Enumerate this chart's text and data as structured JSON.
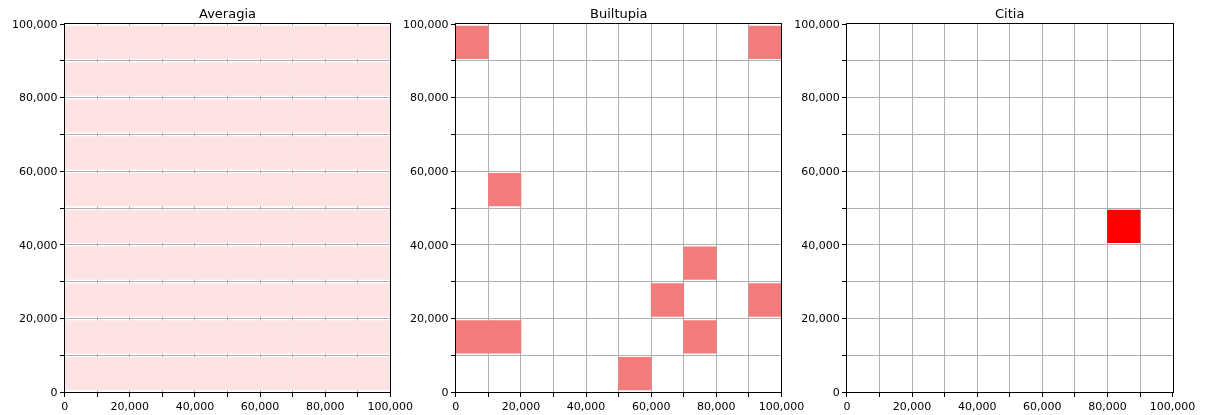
{
  "chart_data": [
    {
      "type": "scatter",
      "title": "Averagia",
      "marker": "square",
      "grid": true,
      "legend": false,
      "color": "#fde3e3",
      "x": [
        5000,
        15000,
        25000,
        35000,
        45000,
        55000,
        65000,
        75000,
        85000,
        95000,
        5000,
        15000,
        25000,
        35000,
        45000,
        55000,
        65000,
        75000,
        85000,
        95000,
        5000,
        15000,
        25000,
        35000,
        45000,
        55000,
        65000,
        75000,
        85000,
        95000,
        5000,
        15000,
        25000,
        35000,
        45000,
        55000,
        65000,
        75000,
        85000,
        95000,
        5000,
        15000,
        25000,
        35000,
        45000,
        55000,
        65000,
        75000,
        85000,
        95000,
        5000,
        15000,
        25000,
        35000,
        45000,
        55000,
        65000,
        75000,
        85000,
        95000,
        5000,
        15000,
        25000,
        35000,
        45000,
        55000,
        65000,
        75000,
        85000,
        95000,
        5000,
        15000,
        25000,
        35000,
        45000,
        55000,
        65000,
        75000,
        85000,
        95000,
        5000,
        15000,
        25000,
        35000,
        45000,
        55000,
        65000,
        75000,
        85000,
        95000,
        5000,
        15000,
        25000,
        35000,
        45000,
        55000,
        65000,
        75000,
        85000,
        95000
      ],
      "values": [
        5000,
        5000,
        5000,
        5000,
        5000,
        5000,
        5000,
        5000,
        5000,
        5000,
        15000,
        15000,
        15000,
        15000,
        15000,
        15000,
        15000,
        15000,
        15000,
        15000,
        25000,
        25000,
        25000,
        25000,
        25000,
        25000,
        25000,
        25000,
        25000,
        25000,
        35000,
        35000,
        35000,
        35000,
        35000,
        35000,
        35000,
        35000,
        35000,
        35000,
        45000,
        45000,
        45000,
        45000,
        45000,
        45000,
        45000,
        45000,
        45000,
        45000,
        55000,
        55000,
        55000,
        55000,
        55000,
        55000,
        55000,
        55000,
        55000,
        55000,
        65000,
        65000,
        65000,
        65000,
        65000,
        65000,
        65000,
        65000,
        65000,
        65000,
        75000,
        75000,
        75000,
        75000,
        75000,
        75000,
        75000,
        75000,
        75000,
        75000,
        85000,
        85000,
        85000,
        85000,
        85000,
        85000,
        85000,
        85000,
        85000,
        85000,
        95000,
        95000,
        95000,
        95000,
        95000,
        95000,
        95000,
        95000,
        95000,
        95000
      ],
      "xlim": [
        0,
        100000
      ],
      "ylim": [
        0,
        100000
      ],
      "xticks": [
        0,
        {
          "value": 10000,
          "label": null
        },
        {
          "value": 20000,
          "label": "20,000"
        },
        {
          "value": 30000,
          "label": null
        },
        {
          "value": 40000,
          "label": "40,000"
        },
        {
          "value": 50000,
          "label": null
        },
        {
          "value": 60000,
          "label": "60,000"
        },
        {
          "value": 70000,
          "label": null
        },
        {
          "value": 80000,
          "label": "80,000"
        },
        {
          "value": 90000,
          "label": null
        },
        {
          "value": 100000,
          "label": "100,000"
        }
      ],
      "yticks": [
        0,
        {
          "value": 10000,
          "label": null
        },
        {
          "value": 20000,
          "label": "20,000"
        },
        {
          "value": 30000,
          "label": null
        },
        {
          "value": 40000,
          "label": "40,000"
        },
        {
          "value": 50000,
          "label": null
        },
        {
          "value": 60000,
          "label": "60,000"
        },
        {
          "value": 70000,
          "label": null
        },
        {
          "value": 80000,
          "label": "80,000"
        },
        {
          "value": 90000,
          "label": null
        },
        {
          "value": 100000,
          "label": "100,000"
        }
      ]
    },
    {
      "type": "scatter",
      "title": "Builtupia",
      "marker": "square",
      "grid": true,
      "legend": false,
      "color": "#f27c7c",
      "x": [
        5000,
        95000,
        15000,
        75000,
        65000,
        95000,
        5000,
        15000,
        75000,
        55000
      ],
      "values": [
        95000,
        95000,
        55000,
        35000,
        25000,
        25000,
        15000,
        15000,
        15000,
        5000
      ],
      "xlim": [
        0,
        100000
      ],
      "ylim": [
        0,
        100000
      ],
      "xticks": [
        0,
        {
          "value": 10000,
          "label": null
        },
        {
          "value": 20000,
          "label": "20,000"
        },
        {
          "value": 30000,
          "label": null
        },
        {
          "value": 40000,
          "label": "40,000"
        },
        {
          "value": 50000,
          "label": null
        },
        {
          "value": 60000,
          "label": "60,000"
        },
        {
          "value": 70000,
          "label": null
        },
        {
          "value": 80000,
          "label": "80,000"
        },
        {
          "value": 90000,
          "label": null
        },
        {
          "value": 100000,
          "label": "100,000"
        }
      ],
      "yticks": [
        0,
        {
          "value": 10000,
          "label": null
        },
        {
          "value": 20000,
          "label": "20,000"
        },
        {
          "value": 30000,
          "label": null
        },
        {
          "value": 40000,
          "label": "40,000"
        },
        {
          "value": 50000,
          "label": null
        },
        {
          "value": 60000,
          "label": "60,000"
        },
        {
          "value": 70000,
          "label": null
        },
        {
          "value": 80000,
          "label": "80,000"
        },
        {
          "value": 90000,
          "label": null
        },
        {
          "value": 100000,
          "label": "100,000"
        }
      ]
    },
    {
      "type": "scatter",
      "title": "Citia",
      "marker": "square",
      "grid": true,
      "legend": false,
      "color": "#ff0000",
      "x": [
        85000
      ],
      "values": [
        45000
      ],
      "xlim": [
        0,
        100000
      ],
      "ylim": [
        0,
        100000
      ],
      "xticks": [
        0,
        {
          "value": 10000,
          "label": null
        },
        {
          "value": 20000,
          "label": "20,000"
        },
        {
          "value": 30000,
          "label": null
        },
        {
          "value": 40000,
          "label": "40,000"
        },
        {
          "value": 50000,
          "label": null
        },
        {
          "value": 60000,
          "label": "60,000"
        },
        {
          "value": 70000,
          "label": null
        },
        {
          "value": 80000,
          "label": "80,000"
        },
        {
          "value": 90000,
          "label": null
        },
        {
          "value": 100000,
          "label": "100,000"
        }
      ],
      "yticks": [
        0,
        {
          "value": 10000,
          "label": null
        },
        {
          "value": 20000,
          "label": "20,000"
        },
        {
          "value": 30000,
          "label": null
        },
        {
          "value": 40000,
          "label": "40,000"
        },
        {
          "value": 50000,
          "label": null
        },
        {
          "value": 60000,
          "label": "60,000"
        },
        {
          "value": 70000,
          "label": null
        },
        {
          "value": 80000,
          "label": "80,000"
        },
        {
          "value": 90000,
          "label": null
        },
        {
          "value": 100000,
          "label": "100,000"
        }
      ]
    }
  ]
}
